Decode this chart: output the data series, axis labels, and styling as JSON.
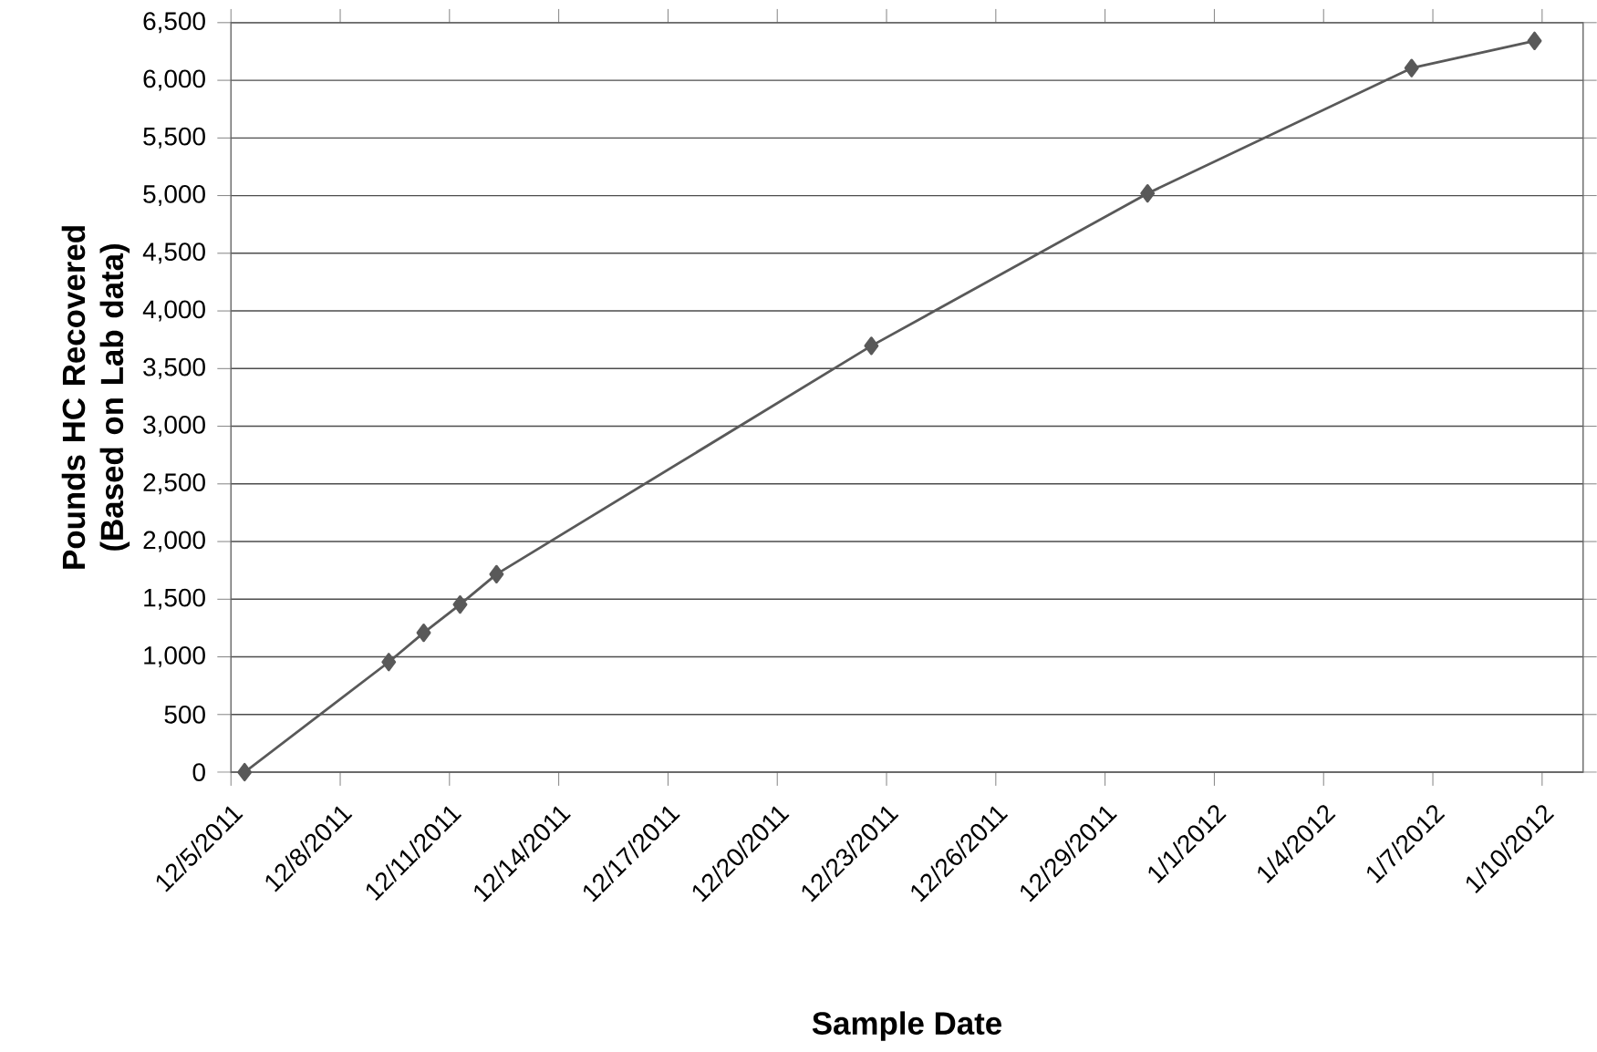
{
  "chart_data": {
    "type": "line",
    "xlabel": "Sample Date",
    "ylabel": "Pounds HC Recovered (Based on Lab data)",
    "x": [
      "2011-12-05T09:00",
      "2011-12-09T08:00",
      "2011-12-10T07:00",
      "2011-12-11T07:00",
      "2011-12-12T07:00",
      "2011-12-22T14:00",
      "2011-12-30T04:00",
      "2012-01-06T10:00",
      "2012-01-09T19:00"
    ],
    "values": [
      0,
      955,
      1209,
      1454,
      1717,
      3697,
      5019,
      6106,
      6342
    ],
    "color": "#595959",
    "marker": "diamond",
    "grid": "y",
    "xlim": [
      "2011-12-05",
      "2012-01-11T03:00"
    ],
    "xticks": [
      {
        "value": "2011-12-05",
        "label": "12/5/2011"
      },
      {
        "value": "2011-12-08",
        "label": "12/8/2011"
      },
      {
        "value": "2011-12-11",
        "label": "12/11/2011"
      },
      {
        "value": "2011-12-14",
        "label": "12/14/2011"
      },
      {
        "value": "2011-12-17",
        "label": "12/17/2011"
      },
      {
        "value": "2011-12-20",
        "label": "12/20/2011"
      },
      {
        "value": "2011-12-23",
        "label": "12/23/2011"
      },
      {
        "value": "2011-12-26",
        "label": "12/26/2011"
      },
      {
        "value": "2011-12-29",
        "label": "12/29/2011"
      },
      {
        "value": "2012-01-01",
        "label": "1/1/2012"
      },
      {
        "value": "2012-01-04",
        "label": "1/4/2012"
      },
      {
        "value": "2012-01-07",
        "label": "1/7/2012"
      },
      {
        "value": "2012-01-10",
        "label": "1/10/2012"
      }
    ],
    "ylim": [
      0,
      6500
    ],
    "yticks": [
      0,
      500,
      {
        "value": 1000,
        "label": "1,000"
      },
      {
        "value": 1500,
        "label": "1,500"
      },
      {
        "value": 2000,
        "label": "2,000"
      },
      {
        "value": 2500,
        "label": "2,500"
      },
      {
        "value": 3000,
        "label": "3,000"
      },
      {
        "value": 3500,
        "label": "3,500"
      },
      {
        "value": 4000,
        "label": "4,000"
      },
      {
        "value": 4500,
        "label": "4,500"
      },
      {
        "value": 5000,
        "label": "5,000"
      },
      {
        "value": 5500,
        "label": "5,500"
      },
      {
        "value": 6000,
        "label": "6,000"
      },
      {
        "value": 6500,
        "label": "6,500"
      }
    ]
  }
}
